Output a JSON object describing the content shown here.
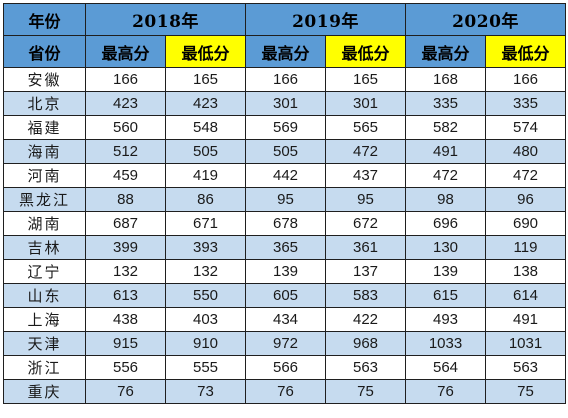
{
  "header": {
    "corner_label": "年份",
    "province_label": "省份",
    "years": [
      "2018年",
      "2019年",
      "2020年"
    ],
    "max_label": "最高分",
    "min_label": "最低分",
    "colors": {
      "header_blue": "#5b9bd5",
      "min_yellow": "#ffff00",
      "stripe_blue": "#c6dbef"
    }
  },
  "rows": [
    {
      "province": "安徽",
      "scores": [
        "166",
        "165",
        "166",
        "165",
        "168",
        "166"
      ]
    },
    {
      "province": "北京",
      "scores": [
        "423",
        "423",
        "301",
        "301",
        "335",
        "335"
      ]
    },
    {
      "province": "福建",
      "scores": [
        "560",
        "548",
        "569",
        "565",
        "582",
        "574"
      ]
    },
    {
      "province": "海南",
      "scores": [
        "512",
        "505",
        "505",
        "472",
        "491",
        "480"
      ]
    },
    {
      "province": "河南",
      "scores": [
        "459",
        "419",
        "442",
        "437",
        "472",
        "472"
      ]
    },
    {
      "province": "黑龙江",
      "scores": [
        "88",
        "86",
        "95",
        "95",
        "98",
        "96"
      ]
    },
    {
      "province": "湖南",
      "scores": [
        "687",
        "671",
        "678",
        "672",
        "696",
        "690"
      ]
    },
    {
      "province": "吉林",
      "scores": [
        "399",
        "393",
        "365",
        "361",
        "130",
        "119"
      ]
    },
    {
      "province": "辽宁",
      "scores": [
        "132",
        "132",
        "139",
        "137",
        "139",
        "138"
      ]
    },
    {
      "province": "山东",
      "scores": [
        "613",
        "550",
        "605",
        "583",
        "615",
        "614"
      ]
    },
    {
      "province": "上海",
      "scores": [
        "438",
        "403",
        "434",
        "422",
        "493",
        "491"
      ]
    },
    {
      "province": "天津",
      "scores": [
        "915",
        "910",
        "972",
        "968",
        "1033",
        "1031"
      ]
    },
    {
      "province": "浙江",
      "scores": [
        "556",
        "555",
        "566",
        "563",
        "564",
        "563"
      ]
    },
    {
      "province": "重庆",
      "scores": [
        "76",
        "73",
        "76",
        "75",
        "76",
        "75"
      ]
    }
  ]
}
